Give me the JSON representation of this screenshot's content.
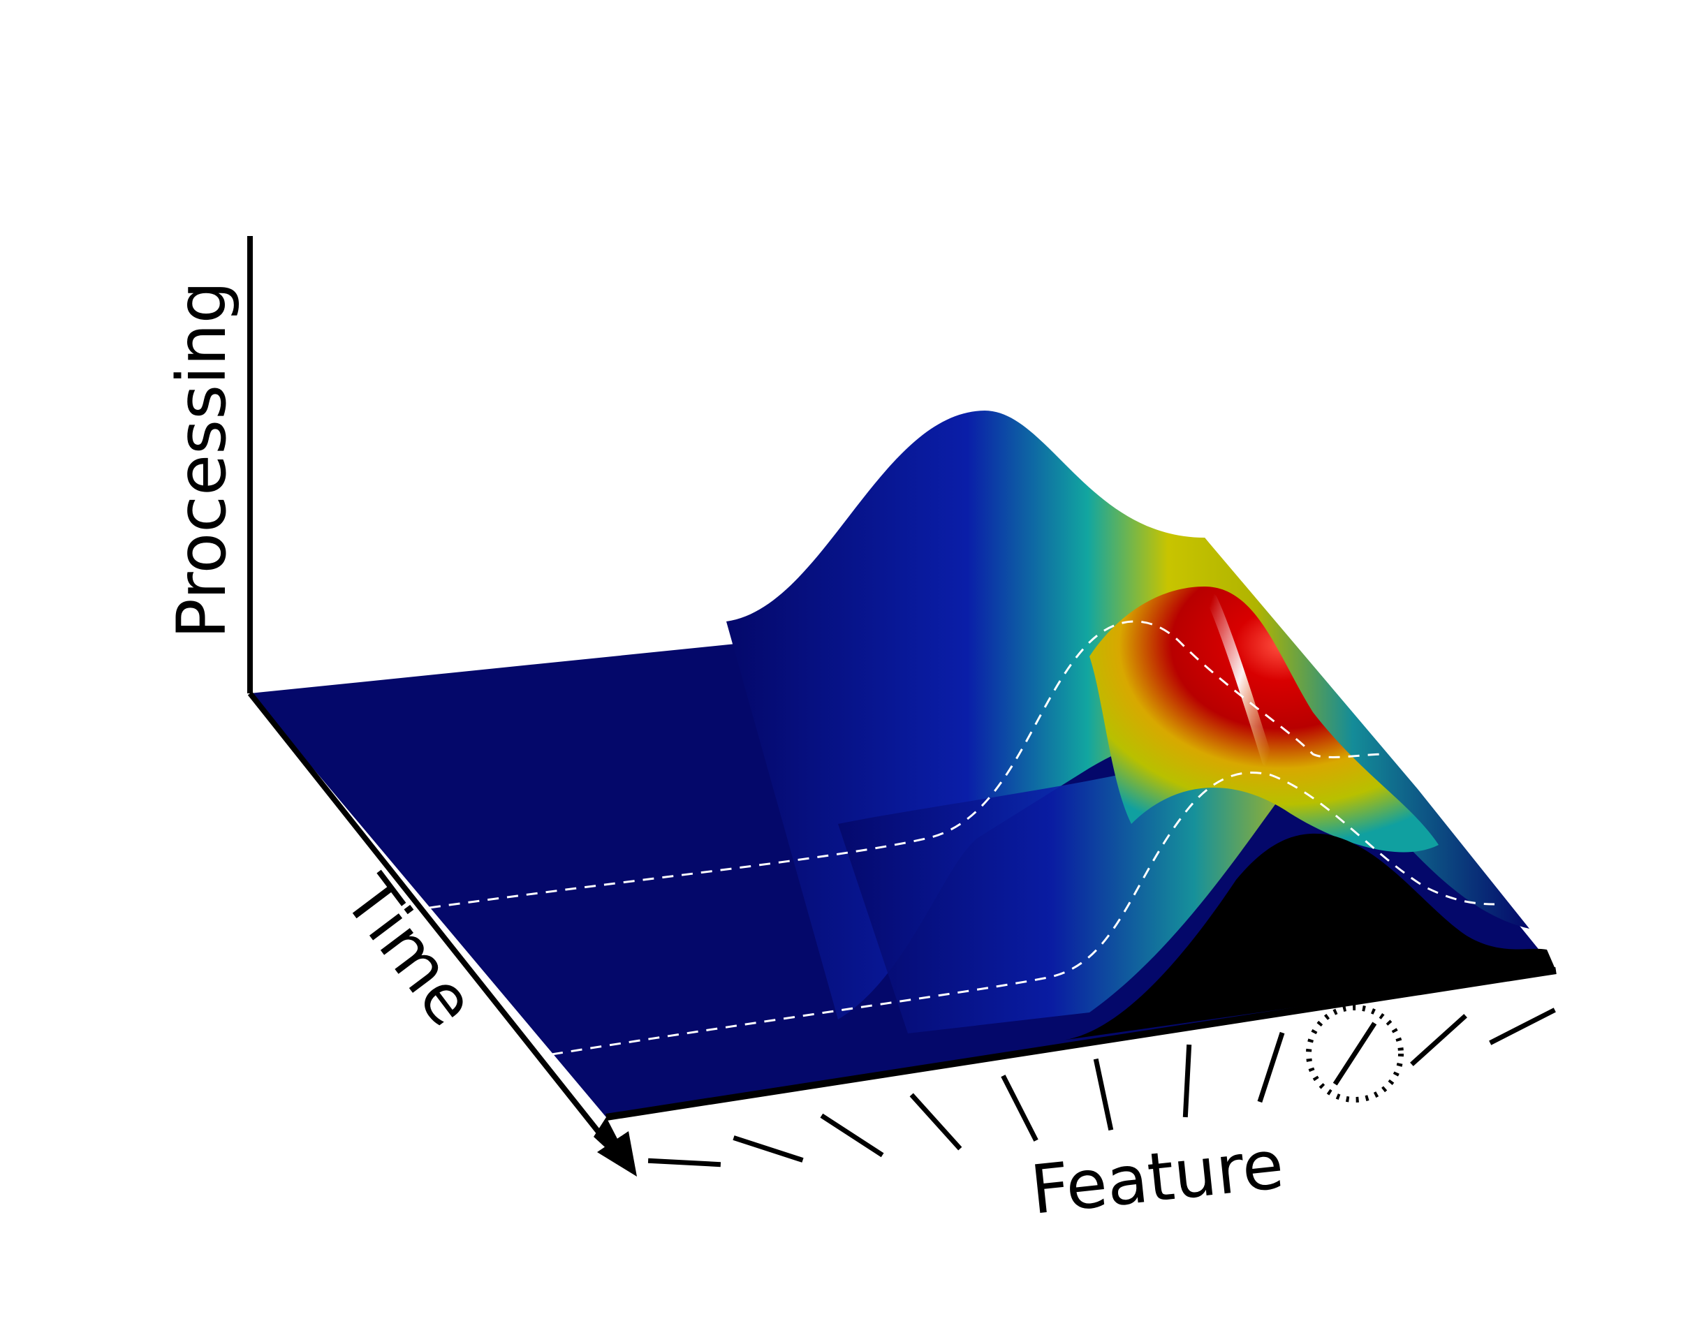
{
  "labels": {
    "processing": "Processing",
    "time": "Time",
    "feature": "Feature"
  },
  "colors": {
    "background": "#ffffff",
    "surface_low": "#04086a",
    "surface_mid": "#12a6a0",
    "surface_high_yellow": "#c8c400",
    "surface_peak_red": "#c40000",
    "front_face": "#000000",
    "dashed_line": "#ffffff",
    "axis": "#000000"
  },
  "surface": {
    "colormap": "jet",
    "ridge_feature_index": 8,
    "ridge_persists_over_time": true,
    "transient_peak_feature_index": 9,
    "dashed_time_slices": 2
  },
  "feature_axis": {
    "orientation_markers": 11,
    "orientation_unit": "degrees",
    "orientations": [
      0,
      15,
      30,
      45,
      60,
      75,
      90,
      105,
      120,
      135,
      150
    ],
    "highlighted_index": 8,
    "highlight_style": "dotted-circle"
  },
  "icons": {
    "time_axis_arrowhead": "arrow-down-right-icon"
  }
}
